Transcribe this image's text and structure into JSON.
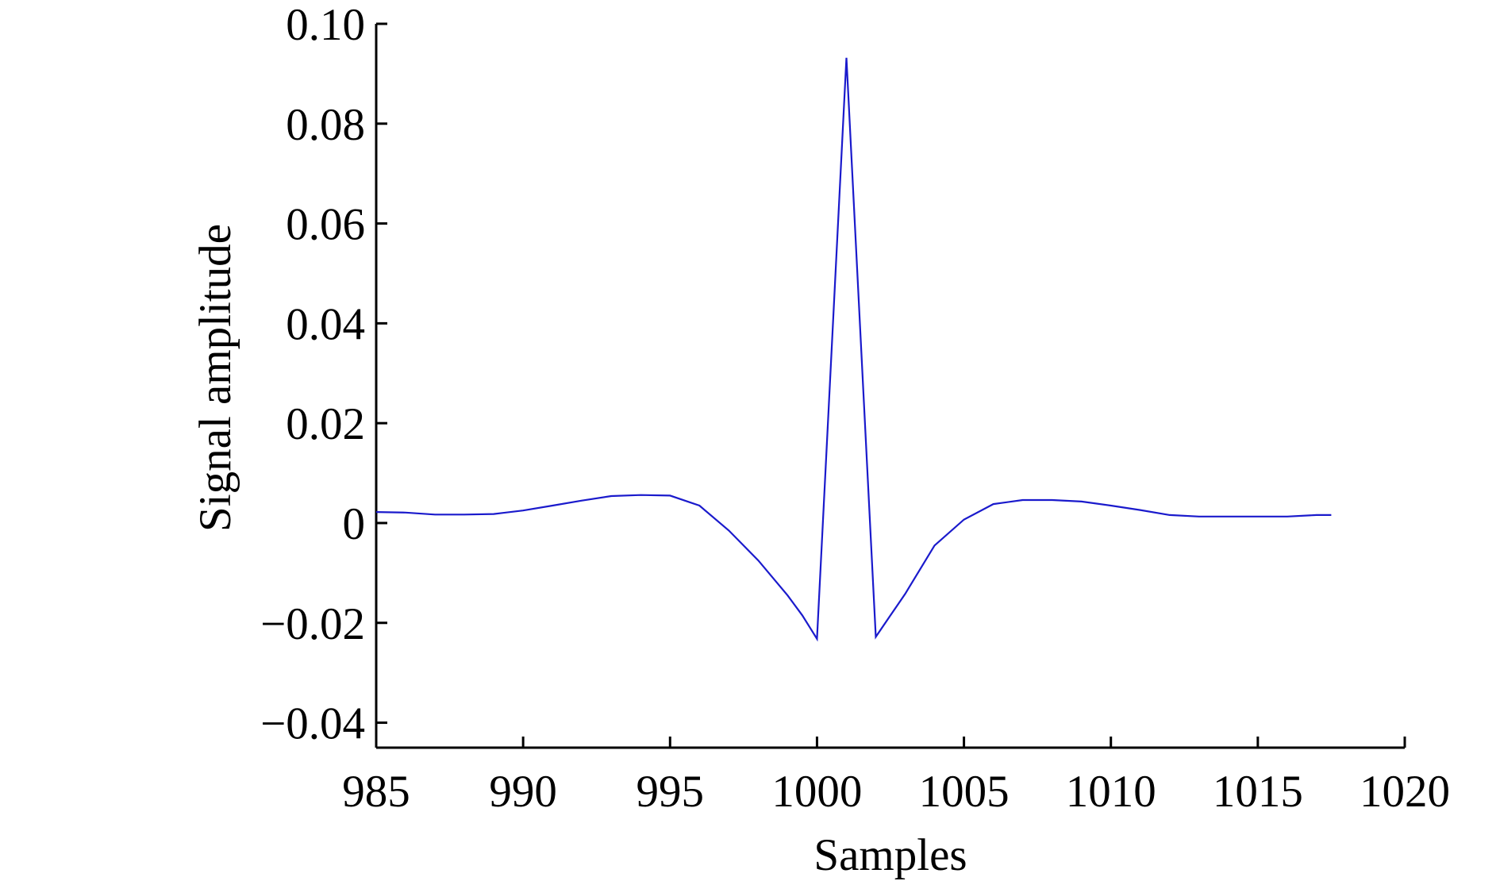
{
  "chart_data": {
    "type": "line",
    "title": "",
    "xlabel": "Samples",
    "ylabel": "Signal amplitude",
    "xlim": [
      985,
      1020
    ],
    "ylim": [
      -0.045,
      0.1
    ],
    "grid": false,
    "legend": "none",
    "x_ticks": [
      {
        "value": 985,
        "label": "985"
      },
      {
        "value": 990,
        "label": "990"
      },
      {
        "value": 995,
        "label": "995"
      },
      {
        "value": 1000,
        "label": "1000"
      },
      {
        "value": 1005,
        "label": "1005"
      },
      {
        "value": 1010,
        "label": "1010"
      },
      {
        "value": 1015,
        "label": "1015"
      },
      {
        "value": 1020,
        "label": "1020"
      }
    ],
    "y_ticks": [
      {
        "value": 0.1,
        "label": "0.10"
      },
      {
        "value": 0.08,
        "label": "0.08"
      },
      {
        "value": 0.06,
        "label": "0.06"
      },
      {
        "value": 0.04,
        "label": "0.04"
      },
      {
        "value": 0.02,
        "label": "0.02"
      },
      {
        "value": 0,
        "label": "0"
      },
      {
        "value": -0.02,
        "label": "−0.02"
      },
      {
        "value": -0.04,
        "label": "−0.04"
      }
    ],
    "series": [
      {
        "color": "#1a1acc",
        "x": [
          985,
          986,
          987,
          988,
          989,
          990,
          991,
          992,
          993,
          994,
          995,
          996,
          997,
          998,
          999,
          999.5,
          1000,
          1001,
          1002,
          1002.5,
          1003,
          1004,
          1005,
          1006,
          1007,
          1008,
          1009,
          1010,
          1011,
          1012,
          1013,
          1014,
          1015,
          1016,
          1017,
          1017.5
        ],
        "y": [
          0.0022,
          0.0021,
          0.0017,
          0.0017,
          0.0018,
          0.0025,
          0.0035,
          0.0045,
          0.0054,
          0.0056,
          0.0055,
          0.0035,
          -0.0015,
          -0.0075,
          -0.0145,
          -0.0185,
          -0.0232,
          0.0932,
          -0.0228,
          -0.0185,
          -0.0142,
          -0.0045,
          0.0007,
          0.0038,
          0.0046,
          0.0046,
          0.0043,
          0.0035,
          0.0026,
          0.0016,
          0.0013,
          0.0013,
          0.0013,
          0.0013,
          0.0016,
          0.0016
        ]
      }
    ]
  }
}
